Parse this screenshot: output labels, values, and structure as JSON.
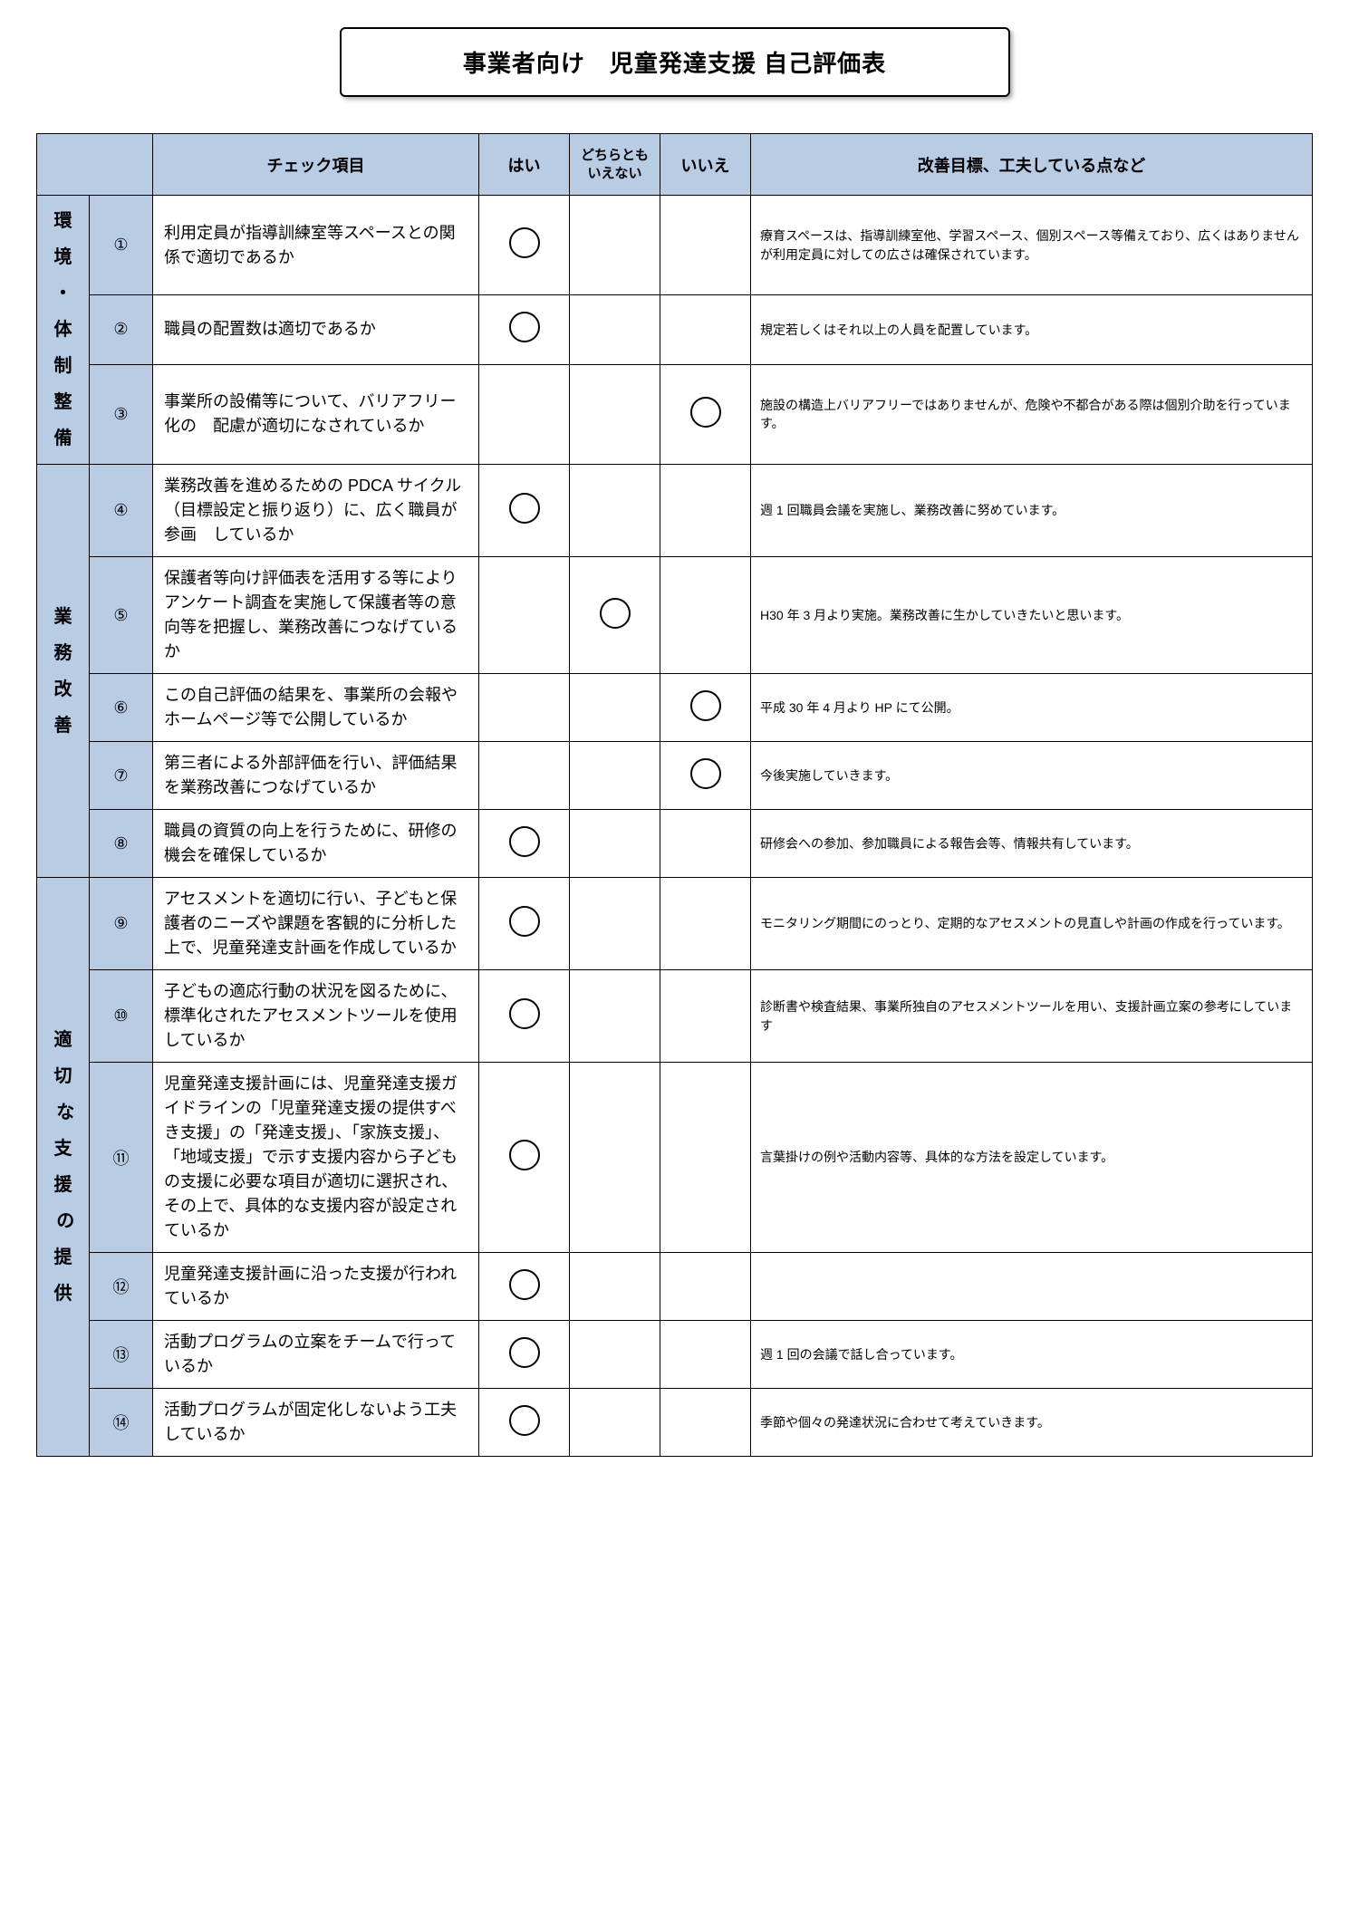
{
  "title": "事業者向け　児童発達支援 自己評価表",
  "headers": {
    "check_item": "チェック項目",
    "yes": "はい",
    "neither": "どちらとも\nいえない",
    "no": "いいえ",
    "notes": "改善目標、工夫している点など"
  },
  "colors": {
    "header_bg": "#b8cce4",
    "border": "#000000",
    "bg": "#ffffff"
  },
  "sections": [
    {
      "label": "環\n境\n・\n体\n制\n整\n備",
      "rows": [
        {
          "num": "①",
          "item": "利用定員が指導訓練室等スペースとの関係で適切であるか",
          "mark": "yes",
          "comment": "療育スペースは、指導訓練室他、学習スペース、個別スペース等備えており、広くはありませんが利用定員に対しての広さは確保されています。"
        },
        {
          "num": "②",
          "item": "職員の配置数は適切であるか",
          "mark": "yes",
          "comment": "規定若しくはそれ以上の人員を配置しています。"
        },
        {
          "num": "③",
          "item": "事業所の設備等について、バリアフリー化の　配慮が適切になされているか",
          "mark": "no",
          "comment": "施設の構造上バリアフリーではありませんが、危険や不都合がある際は個別介助を行っています。"
        }
      ]
    },
    {
      "label": "業\n務\n改\n善",
      "rows": [
        {
          "num": "④",
          "item": "業務改善を進めるための PDCA サイクル（目標設定と振り返り）に、広く職員が参画　しているか",
          "mark": "yes",
          "comment": "週 1 回職員会議を実施し、業務改善に努めています。"
        },
        {
          "num": "⑤",
          "item": "保護者等向け評価表を活用する等によりアンケート調査を実施して保護者等の意向等を把握し、業務改善につなげているか",
          "mark": "neither",
          "comment": "H30 年 3 月より実施。業務改善に生かしていきたいと思います。"
        },
        {
          "num": "⑥",
          "item": "この自己評価の結果を、事業所の会報やホームページ等で公開しているか",
          "mark": "no",
          "comment": "平成 30 年 4 月より HP にて公開。"
        },
        {
          "num": "⑦",
          "item": "第三者による外部評価を行い、評価結果を業務改善につなげているか",
          "mark": "no",
          "comment": "今後実施していきます。"
        },
        {
          "num": "⑧",
          "item": "職員の資質の向上を行うために、研修の機会を確保しているか",
          "mark": "yes",
          "comment": "研修会への参加、参加職員による報告会等、情報共有しています。"
        }
      ]
    },
    {
      "label": "適\n切\n な\n支\n援\n の\n提\n供",
      "rows": [
        {
          "num": "⑨",
          "item": "アセスメントを適切に行い、子どもと保護者のニーズや課題を客観的に分析した上で、児童発達支計画を作成しているか",
          "mark": "yes",
          "comment": "モニタリング期間にのっとり、定期的なアセスメントの見直しや計画の作成を行っています。"
        },
        {
          "num": "⑩",
          "item": "子どもの適応行動の状況を図るために、標準化されたアセスメントツールを使用しているか",
          "mark": "yes",
          "comment": "診断書や検査結果、事業所独自のアセスメントツールを用い、支援計画立案の参考にしています"
        },
        {
          "num": "⑪",
          "item": "児童発達支援計画には、児童発達支援ガイドラインの「児童発達支援の提供すべき支援」の「発達支援」、「家族支援」、「地域支援」で示す支援内容から子どもの支援に必要な項目が適切に選択され、その上で、具体的な支援内容が設定されているか",
          "mark": "yes",
          "comment": "言葉掛けの例や活動内容等、具体的な方法を設定しています。"
        },
        {
          "num": "⑫",
          "item": "児童発達支援計画に沿った支援が行われているか",
          "mark": "yes",
          "comment": ""
        },
        {
          "num": "⑬",
          "item": "活動プログラムの立案をチームで行っているか",
          "mark": "yes",
          "comment": "週 1 回の会議で話し合っています。"
        },
        {
          "num": "⑭",
          "item": "活動プログラムが固定化しないよう工夫しているか",
          "mark": "yes",
          "comment": "季節や個々の発達状況に合わせて考えていきます。"
        }
      ]
    }
  ]
}
